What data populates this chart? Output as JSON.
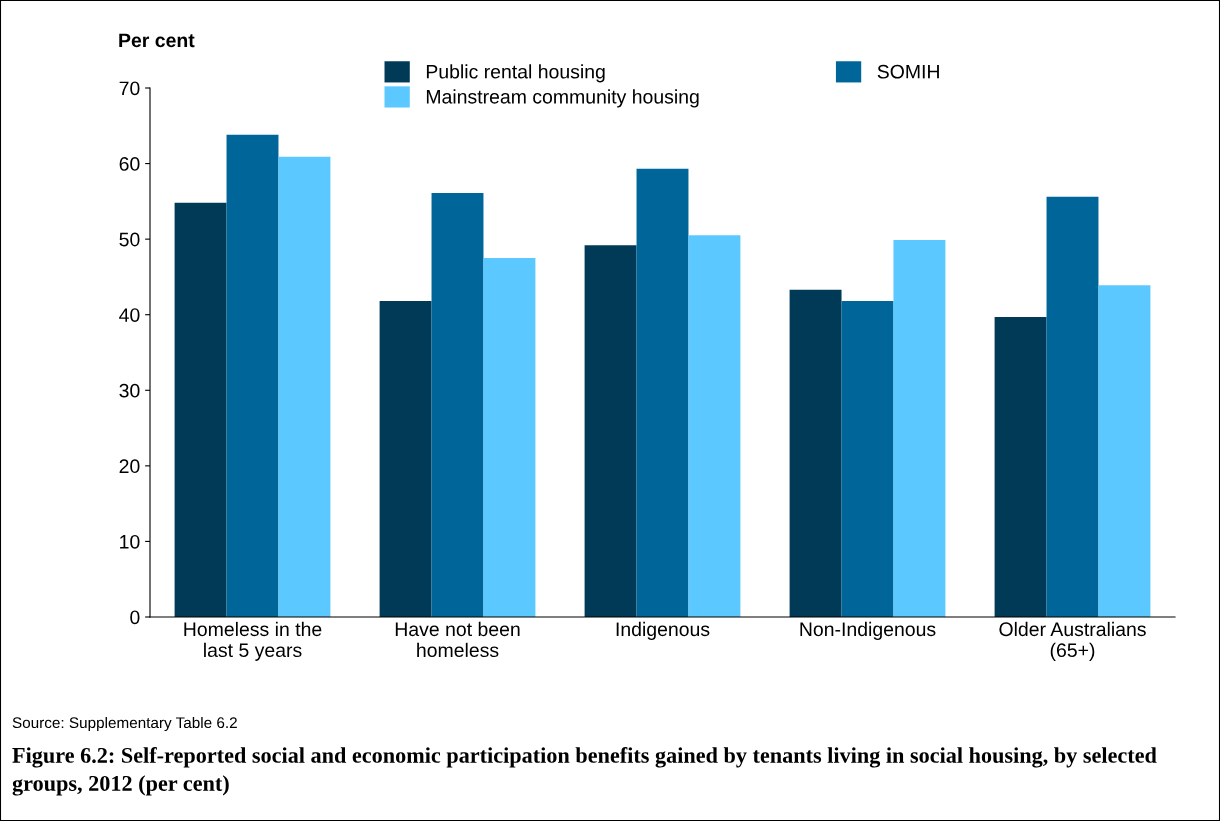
{
  "chart_data": {
    "type": "bar",
    "title": "Figure 6.2: Self-reported social and economic participation benefits gained by tenants living in social housing, by selected groups, 2012 (per cent)",
    "ylabel": "Per cent",
    "categories": [
      "Homeless in the\nlast 5 years",
      "Have not been\nhomeless",
      "Indigenous",
      "Non-Indigenous",
      "Older Australians\n(65+)"
    ],
    "series": [
      {
        "name": "Public rental housing",
        "color": "#003a57",
        "values": [
          54.8,
          41.8,
          49.2,
          43.3,
          39.7
        ]
      },
      {
        "name": "SOMIH",
        "color": "#006699",
        "values": [
          63.8,
          56.1,
          59.3,
          41.8,
          55.6
        ]
      },
      {
        "name": "Mainstream community housing",
        "color": "#5bc8ff",
        "values": [
          60.9,
          47.5,
          50.5,
          49.9,
          43.9
        ]
      }
    ],
    "ylim": [
      0,
      70
    ],
    "yticks": [
      0,
      10,
      20,
      30,
      40,
      50,
      60,
      70
    ],
    "grid": false,
    "legend": "top",
    "annotations": [
      "Source: Supplementary Table 6.2"
    ]
  }
}
